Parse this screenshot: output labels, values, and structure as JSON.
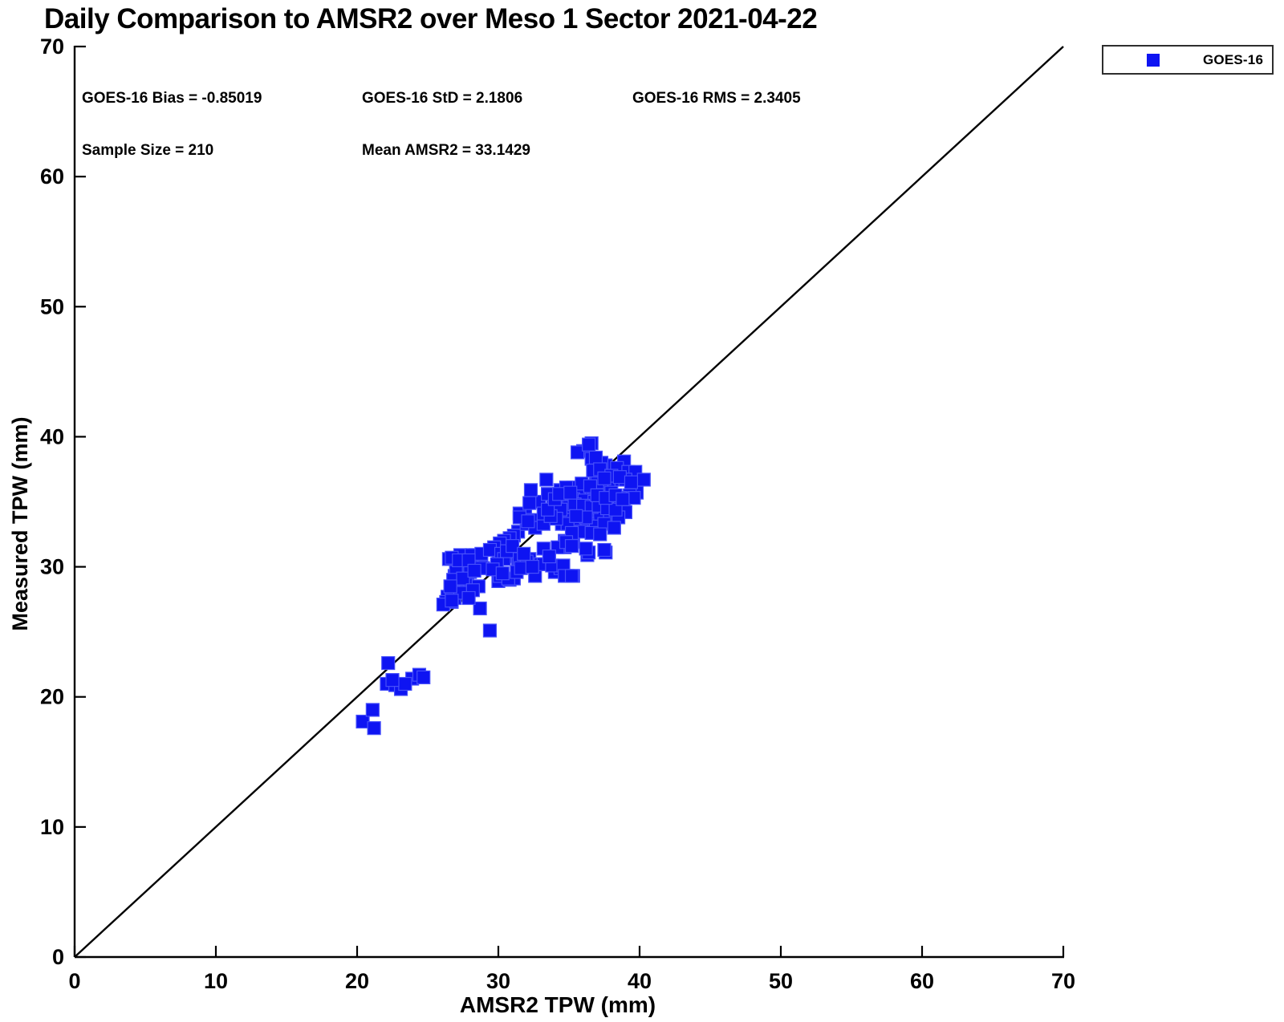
{
  "title": "Daily Comparison to AMSR2 over Meso 1 Sector 2021-04-22",
  "stats": {
    "bias": "GOES-16 Bias = -0.85019",
    "std": "GOES-16 StD = 2.1806",
    "rms": "GOES-16 RMS = 2.3405",
    "sample_size": "Sample Size = 210",
    "mean_amsr2": "Mean AMSR2 = 33.1429"
  },
  "legend": {
    "items": [
      {
        "label": "GOES-16",
        "marker": "square",
        "marker_color": "#0e14f2"
      }
    ],
    "position": "top-right"
  },
  "colors": {
    "marker_fill": "#0e14f2",
    "marker_edge": "#4750fa",
    "axis": "#000000",
    "reference_line": "#000000",
    "text": "#000000"
  },
  "chart_data": {
    "type": "scatter",
    "title": "Daily Comparison to AMSR2 over Meso 1 Sector 2021-04-22",
    "xlabel": "AMSR2 TPW (mm)",
    "ylabel": "Measured TPW (mm)",
    "xlim": [
      0,
      70
    ],
    "ylim": [
      0,
      70
    ],
    "xticks": [
      0,
      10,
      20,
      30,
      40,
      50,
      60,
      70
    ],
    "yticks": [
      0,
      10,
      20,
      30,
      40,
      50,
      60,
      70
    ],
    "grid": false,
    "box": false,
    "legend_position": "top-right",
    "reference_line": {
      "from": [
        0,
        0
      ],
      "to": [
        70,
        70
      ]
    },
    "marker_size_px": 16,
    "series": [
      {
        "name": "GOES-16",
        "marker": "square",
        "points": [
          [
            20.4,
            18.1
          ],
          [
            21.2,
            17.6
          ],
          [
            21.1,
            19.0
          ],
          [
            22.2,
            22.6
          ],
          [
            22.1,
            21.0
          ],
          [
            22.7,
            20.9
          ],
          [
            23.1,
            20.6
          ],
          [
            23.9,
            21.4
          ],
          [
            24.4,
            21.7
          ],
          [
            24.7,
            21.5
          ],
          [
            28.7,
            26.8
          ],
          [
            29.4,
            25.1
          ],
          [
            26.5,
            30.6
          ],
          [
            27.3,
            30.9
          ],
          [
            27.4,
            30.2
          ],
          [
            28.4,
            30.9
          ],
          [
            28.8,
            30.8
          ],
          [
            28.9,
            29.9
          ],
          [
            26.9,
            29.3
          ],
          [
            27.5,
            29.4
          ],
          [
            27.8,
            29.3
          ],
          [
            27.1,
            28.7
          ],
          [
            27.7,
            28.7
          ],
          [
            27.1,
            28.1
          ],
          [
            27.6,
            28.0
          ],
          [
            26.4,
            27.7
          ],
          [
            26.9,
            27.6
          ],
          [
            26.3,
            27.3
          ],
          [
            26.7,
            27.3
          ],
          [
            26.1,
            27.1
          ],
          [
            26.7,
            30.7
          ],
          [
            27.4,
            30.1
          ],
          [
            28.1,
            30.9
          ],
          [
            27.0,
            29.6
          ],
          [
            28.0,
            29.6
          ],
          [
            26.8,
            29.0
          ],
          [
            27.5,
            29.1
          ],
          [
            26.7,
            28.1
          ],
          [
            27.3,
            28.0
          ],
          [
            26.7,
            27.4
          ],
          [
            28.8,
            31.0
          ],
          [
            28.8,
            29.9
          ],
          [
            30.0,
            31.2
          ],
          [
            30.9,
            30.8
          ],
          [
            31.4,
            30.4
          ],
          [
            30.0,
            28.9
          ],
          [
            30.8,
            29.0
          ],
          [
            31.1,
            29.1
          ],
          [
            30.1,
            29.3
          ],
          [
            30.7,
            29.1
          ],
          [
            31.3,
            29.6
          ],
          [
            32.2,
            30.6
          ],
          [
            33.0,
            30.2
          ],
          [
            33.4,
            30.2
          ],
          [
            32.6,
            29.3
          ],
          [
            34.0,
            29.6
          ],
          [
            34.4,
            29.9
          ],
          [
            34.9,
            29.3
          ],
          [
            35.3,
            29.3
          ],
          [
            36.3,
            30.9
          ],
          [
            31.5,
            30.6
          ],
          [
            32.0,
            30.4
          ],
          [
            33.2,
            30.2
          ],
          [
            33.8,
            30.1
          ],
          [
            35.1,
            31.7
          ],
          [
            34.7,
            31.5
          ],
          [
            36.4,
            31.1
          ],
          [
            37.6,
            31.1
          ],
          [
            34.6,
            30.1
          ],
          [
            34.7,
            29.3
          ],
          [
            35.2,
            29.3
          ],
          [
            31.4,
            32.7
          ],
          [
            31.1,
            32.4
          ],
          [
            30.8,
            32.2
          ],
          [
            30.4,
            32.0
          ],
          [
            30.1,
            31.8
          ],
          [
            29.7,
            31.5
          ],
          [
            29.4,
            31.3
          ],
          [
            31.9,
            34.0
          ],
          [
            32.4,
            33.6
          ],
          [
            31.5,
            34.1
          ],
          [
            32.0,
            33.3
          ],
          [
            32.6,
            33.0
          ],
          [
            33.2,
            33.3
          ],
          [
            34.5,
            33.3
          ],
          [
            34.9,
            33.4
          ],
          [
            35.4,
            33.3
          ],
          [
            34.7,
            32.0
          ],
          [
            35.3,
            31.9
          ],
          [
            33.2,
            31.4
          ],
          [
            34.2,
            31.5
          ],
          [
            32.9,
            35.0
          ],
          [
            32.2,
            34.9
          ],
          [
            33.2,
            34.1
          ],
          [
            33.9,
            34.7
          ],
          [
            34.7,
            35.0
          ],
          [
            32.3,
            35.9
          ],
          [
            33.4,
            36.7
          ],
          [
            33.5,
            35.6
          ],
          [
            34.4,
            35.9
          ],
          [
            31.5,
            33.8
          ],
          [
            32.1,
            33.5
          ],
          [
            36.6,
            39.5
          ],
          [
            36.0,
            38.9
          ],
          [
            35.6,
            38.8
          ],
          [
            36.9,
            38.2
          ],
          [
            37.6,
            37.8
          ],
          [
            38.9,
            38.1
          ],
          [
            38.4,
            37.6
          ],
          [
            39.2,
            37.3
          ],
          [
            39.7,
            37.3
          ],
          [
            40.3,
            36.7
          ],
          [
            38.5,
            36.7
          ],
          [
            39.0,
            36.7
          ],
          [
            37.8,
            36.4
          ],
          [
            36.9,
            37.0
          ],
          [
            36.3,
            35.9
          ],
          [
            35.3,
            36.1
          ],
          [
            34.8,
            36.1
          ],
          [
            35.7,
            35.6
          ],
          [
            36.8,
            35.9
          ],
          [
            37.3,
            35.9
          ],
          [
            38.0,
            35.7
          ],
          [
            39.8,
            35.7
          ],
          [
            39.3,
            35.5
          ],
          [
            38.6,
            35.3
          ],
          [
            34.7,
            35.3
          ],
          [
            35.3,
            35.2
          ],
          [
            36.1,
            35.1
          ],
          [
            36.8,
            35.0
          ],
          [
            37.4,
            35.1
          ],
          [
            38.1,
            34.9
          ],
          [
            38.9,
            34.8
          ],
          [
            39.6,
            35.3
          ],
          [
            37.3,
            34.4
          ],
          [
            39.0,
            34.2
          ],
          [
            35.8,
            34.3
          ],
          [
            36.5,
            34.2
          ],
          [
            35.2,
            34.2
          ],
          [
            34.7,
            34.1
          ],
          [
            37.2,
            33.9
          ],
          [
            37.9,
            34.0
          ],
          [
            38.5,
            33.8
          ],
          [
            35.6,
            33.5
          ],
          [
            36.3,
            33.3
          ],
          [
            34.9,
            33.3
          ],
          [
            36.9,
            33.1
          ],
          [
            37.5,
            33.3
          ],
          [
            38.2,
            33.0
          ],
          [
            35.9,
            32.7
          ],
          [
            36.6,
            32.6
          ],
          [
            35.2,
            32.6
          ],
          [
            37.2,
            32.5
          ],
          [
            34.8,
            31.9
          ],
          [
            35.2,
            31.6
          ],
          [
            36.2,
            31.4
          ],
          [
            37.5,
            31.3
          ],
          [
            36.4,
            39.4
          ],
          [
            36.6,
            38.3
          ],
          [
            37.0,
            36.5
          ],
          [
            37.3,
            38.0
          ],
          [
            36.9,
            38.4
          ],
          [
            35.0,
            34.6
          ],
          [
            35.4,
            34.8
          ],
          [
            36.0,
            34.7
          ],
          [
            36.6,
            34.6
          ],
          [
            37.1,
            34.7
          ],
          [
            37.7,
            34.5
          ],
          [
            38.3,
            34.4
          ],
          [
            36.2,
            33.8
          ],
          [
            35.5,
            33.9
          ],
          [
            34.4,
            34.4
          ],
          [
            34.1,
            33.7
          ],
          [
            33.7,
            33.9
          ],
          [
            33.5,
            34.4
          ],
          [
            34.0,
            35.2
          ],
          [
            34.3,
            35.6
          ],
          [
            35.9,
            36.4
          ],
          [
            36.5,
            36.2
          ],
          [
            35.1,
            35.7
          ],
          [
            37.0,
            35.5
          ],
          [
            37.6,
            35.3
          ],
          [
            38.3,
            35.5
          ],
          [
            38.8,
            35.2
          ],
          [
            36.7,
            37.4
          ],
          [
            37.2,
            37.5
          ],
          [
            38.0,
            37.0
          ],
          [
            38.6,
            36.9
          ],
          [
            39.4,
            36.5
          ],
          [
            37.5,
            36.8
          ],
          [
            30.2,
            31.0
          ],
          [
            30.4,
            30.6
          ],
          [
            30.6,
            31.2
          ],
          [
            29.9,
            30.2
          ],
          [
            29.6,
            29.8
          ],
          [
            30.3,
            29.5
          ],
          [
            31.6,
            29.9
          ],
          [
            32.4,
            30.0
          ],
          [
            27.2,
            30.5
          ],
          [
            27.9,
            30.5
          ],
          [
            28.3,
            29.7
          ],
          [
            28.6,
            28.5
          ],
          [
            28.2,
            28.2
          ],
          [
            27.9,
            27.6
          ],
          [
            26.6,
            28.5
          ],
          [
            23.4,
            21.0
          ],
          [
            22.5,
            21.3
          ],
          [
            31.0,
            31.6
          ],
          [
            31.8,
            31.0
          ],
          [
            33.6,
            30.8
          ]
        ]
      }
    ]
  }
}
